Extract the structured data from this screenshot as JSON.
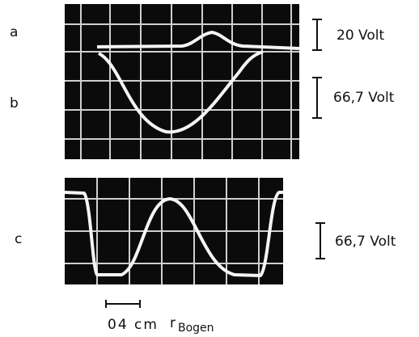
{
  "panels": [
    {
      "label": "a",
      "scale": "20 Volt"
    },
    {
      "label": "b",
      "scale": "66,7 Volt"
    },
    {
      "label": "c",
      "scale": "66,7 Volt"
    }
  ],
  "scale_bar": "04 cm",
  "axis_symbol": "r",
  "axis_subscript": "Bogen"
}
